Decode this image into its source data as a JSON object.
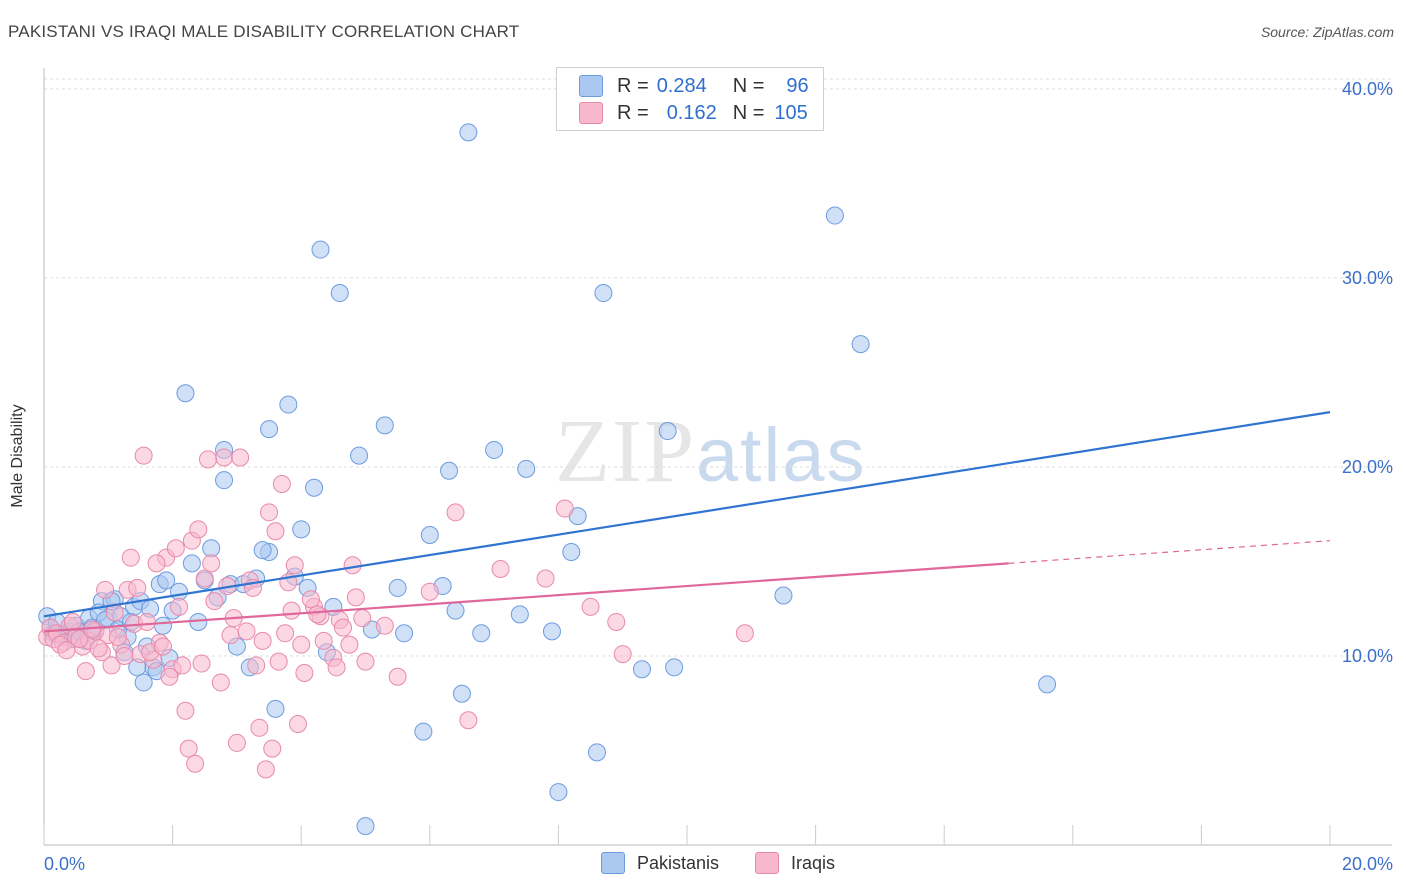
{
  "title": "PAKISTANI VS IRAQI MALE DISABILITY CORRELATION CHART",
  "source": "Source: ZipAtlas.com",
  "watermark": {
    "zip": "ZIP",
    "atlas": "atlas"
  },
  "legend_top": {
    "rows": [
      {
        "r_label": "R =",
        "r_value": "0.284",
        "n_label": "N =",
        "n_value": "96"
      },
      {
        "r_label": "R =",
        "r_value": "0.162",
        "n_label": "N =",
        "n_value": "105"
      }
    ]
  },
  "legend_bottom": {
    "items": [
      "Pakistanis",
      "Iraqis"
    ]
  },
  "colors": {
    "blue_fill": "#aac8f0",
    "blue_stroke": "#6d9be0",
    "blue_line": "#2f74d0",
    "pink_fill": "#f7b8cd",
    "pink_stroke": "#e88aaa",
    "pink_line": "#e0679a",
    "grid": "#dddddd",
    "tick_label": "#3c6fc9"
  },
  "chart_data": {
    "type": "scatter",
    "title": "PAKISTANI VS IRAQI MALE DISABILITY CORRELATION CHART",
    "xlabel": "",
    "ylabel": "Male Disability",
    "xlim": [
      0,
      20
    ],
    "ylim": [
      0,
      41
    ],
    "x_tick_labels": [
      "0.0%",
      "20.0%"
    ],
    "y_ticks": [
      10,
      20,
      30,
      40
    ],
    "y_tick_labels": [
      "10.0%",
      "20.0%",
      "30.0%",
      "40.0%"
    ],
    "grid": true,
    "legend_position": "top-center",
    "series": [
      {
        "name": "Pakistanis",
        "R": 0.284,
        "N": 96,
        "trend": {
          "x": [
            0,
            20
          ],
          "y": [
            12.1,
            22.9
          ]
        },
        "points": [
          [
            0.05,
            12.1
          ],
          [
            0.1,
            11.5
          ],
          [
            0.15,
            11.2
          ],
          [
            0.2,
            11.8
          ],
          [
            0.3,
            11.0
          ],
          [
            0.4,
            11.3
          ],
          [
            0.5,
            11.6
          ],
          [
            0.6,
            11.2
          ],
          [
            0.7,
            12.0
          ],
          [
            0.8,
            11.4
          ],
          [
            0.9,
            12.9
          ],
          [
            1.0,
            12.0
          ],
          [
            1.1,
            13.0
          ],
          [
            1.2,
            12.1
          ],
          [
            1.3,
            11.0
          ],
          [
            1.4,
            12.6
          ],
          [
            1.5,
            12.9
          ],
          [
            1.6,
            10.5
          ],
          [
            1.7,
            9.4
          ],
          [
            1.8,
            13.8
          ],
          [
            1.9,
            14.0
          ],
          [
            2.0,
            12.4
          ],
          [
            2.2,
            23.9
          ],
          [
            2.3,
            14.9
          ],
          [
            2.5,
            14.0
          ],
          [
            2.6,
            15.7
          ],
          [
            2.8,
            20.9
          ],
          [
            2.8,
            19.3
          ],
          [
            2.9,
            13.8
          ],
          [
            3.0,
            10.5
          ],
          [
            3.3,
            14.1
          ],
          [
            3.5,
            15.5
          ],
          [
            3.5,
            22.0
          ],
          [
            3.8,
            23.3
          ],
          [
            4.0,
            16.7
          ],
          [
            4.2,
            18.9
          ],
          [
            4.3,
            31.5
          ],
          [
            4.5,
            12.6
          ],
          [
            4.6,
            29.2
          ],
          [
            4.9,
            20.6
          ],
          [
            5.1,
            11.4
          ],
          [
            5.3,
            22.2
          ],
          [
            5.6,
            11.2
          ],
          [
            5.9,
            6.0
          ],
          [
            6.0,
            16.4
          ],
          [
            6.3,
            19.8
          ],
          [
            6.4,
            12.4
          ],
          [
            6.5,
            8.0
          ],
          [
            6.6,
            37.7
          ],
          [
            7.0,
            20.9
          ],
          [
            7.4,
            12.2
          ],
          [
            7.5,
            19.9
          ],
          [
            7.9,
            11.3
          ],
          [
            8.0,
            2.8
          ],
          [
            8.2,
            15.5
          ],
          [
            8.3,
            17.4
          ],
          [
            8.6,
            4.9
          ],
          [
            8.7,
            29.2
          ],
          [
            9.3,
            9.3
          ],
          [
            9.7,
            21.9
          ],
          [
            9.8,
            9.4
          ],
          [
            11.5,
            13.2
          ],
          [
            12.3,
            33.3
          ],
          [
            12.7,
            26.5
          ],
          [
            15.6,
            8.5
          ],
          [
            0.25,
            11.1
          ],
          [
            0.45,
            10.9
          ],
          [
            0.55,
            11.3
          ],
          [
            0.65,
            10.8
          ],
          [
            0.75,
            11.5
          ],
          [
            0.85,
            12.3
          ],
          [
            0.95,
            11.9
          ],
          [
            1.05,
            12.9
          ],
          [
            1.15,
            11.4
          ],
          [
            1.25,
            10.2
          ],
          [
            1.35,
            11.8
          ],
          [
            1.45,
            9.4
          ],
          [
            1.55,
            8.6
          ],
          [
            1.65,
            12.5
          ],
          [
            1.75,
            9.2
          ],
          [
            1.85,
            11.6
          ],
          [
            1.95,
            9.9
          ],
          [
            2.1,
            13.4
          ],
          [
            2.4,
            11.8
          ],
          [
            2.7,
            13.1
          ],
          [
            3.1,
            13.8
          ],
          [
            3.2,
            9.4
          ],
          [
            3.4,
            15.6
          ],
          [
            3.6,
            7.2
          ],
          [
            3.9,
            14.2
          ],
          [
            4.1,
            13.6
          ],
          [
            4.4,
            10.2
          ],
          [
            5.0,
            1.0
          ],
          [
            5.5,
            13.6
          ],
          [
            6.2,
            13.7
          ],
          [
            6.8,
            11.2
          ]
        ]
      },
      {
        "name": "Iraqis",
        "R": 0.162,
        "N": 105,
        "trend": {
          "x": [
            0,
            15
          ],
          "y": [
            11.3,
            14.9
          ]
        },
        "trend_dashed": {
          "x": [
            15,
            20
          ],
          "y": [
            14.9,
            16.1
          ]
        },
        "points": [
          [
            0.05,
            11.0
          ],
          [
            0.1,
            11.5
          ],
          [
            0.15,
            10.9
          ],
          [
            0.2,
            11.2
          ],
          [
            0.3,
            10.7
          ],
          [
            0.4,
            11.6
          ],
          [
            0.5,
            11.0
          ],
          [
            0.6,
            10.5
          ],
          [
            0.7,
            10.8
          ],
          [
            0.8,
            11.3
          ],
          [
            0.9,
            10.2
          ],
          [
            1.0,
            11.1
          ],
          [
            1.1,
            12.3
          ],
          [
            1.2,
            10.6
          ],
          [
            1.3,
            13.5
          ],
          [
            1.4,
            11.7
          ],
          [
            1.5,
            10.1
          ],
          [
            1.6,
            11.8
          ],
          [
            1.7,
            9.8
          ],
          [
            1.8,
            10.7
          ],
          [
            1.9,
            15.2
          ],
          [
            2.0,
            9.3
          ],
          [
            2.1,
            12.6
          ],
          [
            2.2,
            7.1
          ],
          [
            2.3,
            16.1
          ],
          [
            2.4,
            16.7
          ],
          [
            2.5,
            14.1
          ],
          [
            2.6,
            14.9
          ],
          [
            2.8,
            20.5
          ],
          [
            2.9,
            11.1
          ],
          [
            3.0,
            5.4
          ],
          [
            3.2,
            14.0
          ],
          [
            3.3,
            9.5
          ],
          [
            3.4,
            10.8
          ],
          [
            3.5,
            17.6
          ],
          [
            3.6,
            16.6
          ],
          [
            3.7,
            19.1
          ],
          [
            3.8,
            13.9
          ],
          [
            3.9,
            14.8
          ],
          [
            4.0,
            10.6
          ],
          [
            4.2,
            12.6
          ],
          [
            4.3,
            12.1
          ],
          [
            4.5,
            9.9
          ],
          [
            4.6,
            11.9
          ],
          [
            4.8,
            14.8
          ],
          [
            5.0,
            9.7
          ],
          [
            5.3,
            11.6
          ],
          [
            5.5,
            8.9
          ],
          [
            6.0,
            13.4
          ],
          [
            6.4,
            17.6
          ],
          [
            6.6,
            6.6
          ],
          [
            7.1,
            14.6
          ],
          [
            7.8,
            14.1
          ],
          [
            8.1,
            17.8
          ],
          [
            8.5,
            12.6
          ],
          [
            8.9,
            11.8
          ],
          [
            9.0,
            10.1
          ],
          [
            10.9,
            11.2
          ],
          [
            0.25,
            10.6
          ],
          [
            0.35,
            10.3
          ],
          [
            0.45,
            11.8
          ],
          [
            0.55,
            10.9
          ],
          [
            0.65,
            9.2
          ],
          [
            0.75,
            11.4
          ],
          [
            0.85,
            10.4
          ],
          [
            0.95,
            13.5
          ],
          [
            1.05,
            9.5
          ],
          [
            1.15,
            11.0
          ],
          [
            1.25,
            10.0
          ],
          [
            1.35,
            15.2
          ],
          [
            1.45,
            13.6
          ],
          [
            1.55,
            20.6
          ],
          [
            1.65,
            10.2
          ],
          [
            1.75,
            14.9
          ],
          [
            1.85,
            10.5
          ],
          [
            1.95,
            8.9
          ],
          [
            2.05,
            15.7
          ],
          [
            2.15,
            9.5
          ],
          [
            2.25,
            5.1
          ],
          [
            2.35,
            4.3
          ],
          [
            2.45,
            9.6
          ],
          [
            2.55,
            20.4
          ],
          [
            2.65,
            12.9
          ],
          [
            2.75,
            8.6
          ],
          [
            2.85,
            13.7
          ],
          [
            2.95,
            12.0
          ],
          [
            3.05,
            20.5
          ],
          [
            3.15,
            11.3
          ],
          [
            3.25,
            13.6
          ],
          [
            3.35,
            6.2
          ],
          [
            3.45,
            4.0
          ],
          [
            3.55,
            5.1
          ],
          [
            3.65,
            9.7
          ],
          [
            3.75,
            11.2
          ],
          [
            3.85,
            12.4
          ],
          [
            3.95,
            6.4
          ],
          [
            4.05,
            9.1
          ],
          [
            4.15,
            13.0
          ],
          [
            4.25,
            12.2
          ],
          [
            4.35,
            10.8
          ],
          [
            4.55,
            9.4
          ],
          [
            4.65,
            11.5
          ],
          [
            4.75,
            10.6
          ],
          [
            4.85,
            13.1
          ],
          [
            4.95,
            12.0
          ]
        ]
      }
    ]
  }
}
